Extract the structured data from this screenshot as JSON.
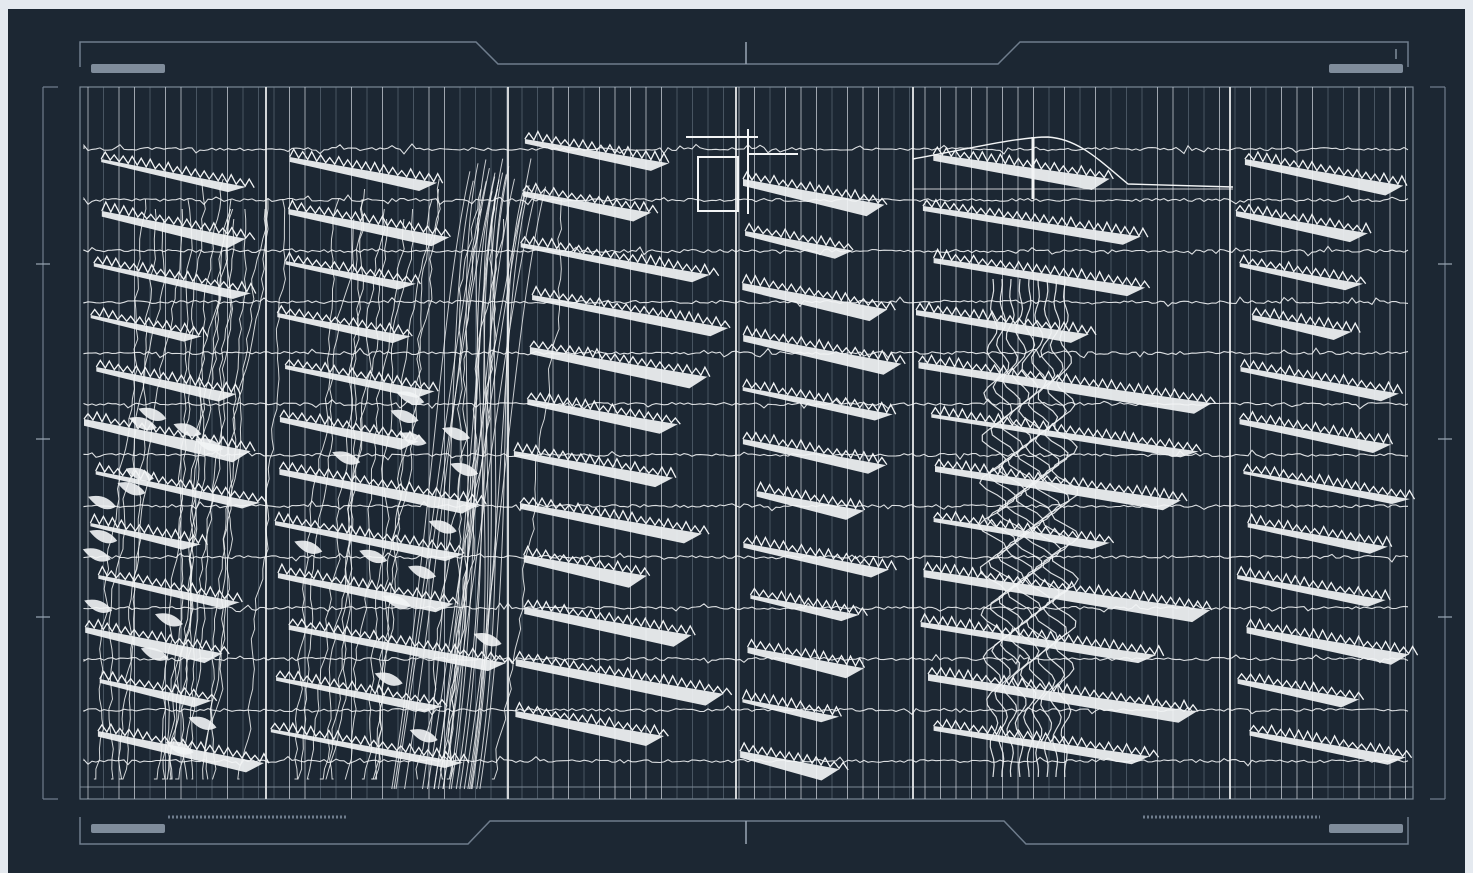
{
  "colors": {
    "page_bg": "#e4e9ef",
    "screen_bg": "#1c2733",
    "frame_line": "#6f7d8d",
    "frame_line_light": "#9aa7b5",
    "trace": "#f2f4f5",
    "grid_line": "#c9d0d8",
    "grid_line_dim": "#7b8896",
    "corner_tab": "#7f8c9b"
  },
  "icons": {
    "corner_tab": "filled-rounded-bar",
    "tick_mark": "short-line"
  },
  "seismogram": {
    "channel_count": 13,
    "panel_count": 6,
    "trace_style": "wiggle-with-filled-peaks"
  }
}
